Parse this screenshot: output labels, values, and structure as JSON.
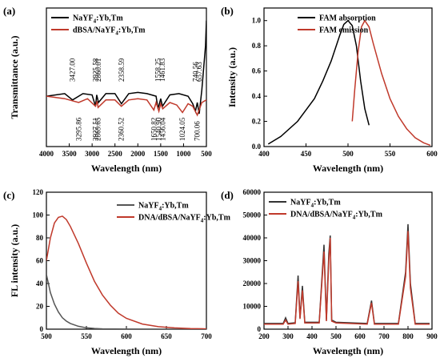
{
  "chart_data": [
    {
      "panel": "(a)",
      "type": "line",
      "xlabel": "Wavelength (nm)",
      "ylabel": "Transmittance (a.u.)",
      "xlim": [
        4000,
        500
      ],
      "x_ticks": [
        "4000",
        "3500",
        "3000",
        "2500",
        "2000",
        "1500",
        "1000",
        "500"
      ],
      "legend": "top-left",
      "series": [
        {
          "name": "NaYF4:Yb,Tm",
          "color": "#000000",
          "x": [
            4000,
            3600,
            3427,
            3200,
            3000,
            2925,
            2900,
            2860,
            2700,
            2500,
            2358,
            2200,
            2000,
            1800,
            1600,
            1558,
            1500,
            1461,
            1300,
            1100,
            900,
            800,
            740,
            700,
            657,
            600,
            520,
            500
          ],
          "y": [
            0.0,
            0.2,
            -0.3,
            0.2,
            0.1,
            -0.8,
            0.1,
            -0.5,
            0.2,
            0.2,
            -0.6,
            0.2,
            0.3,
            0.2,
            0.0,
            -1.0,
            -0.2,
            -0.8,
            0.1,
            0.2,
            0.0,
            -0.6,
            -1.2,
            -0.5,
            -1.4,
            0.5,
            4.0,
            6.0
          ]
        },
        {
          "name": "dBSA/NaYF4:Yb,Tm",
          "color": "#c0392b",
          "x": [
            4000,
            3600,
            3295,
            3100,
            2927,
            2890,
            2869,
            2700,
            2500,
            2360,
            2200,
            2000,
            1800,
            1650,
            1600,
            1540,
            1500,
            1456,
            1300,
            1150,
            1024,
            900,
            800,
            700,
            600,
            500
          ],
          "y": [
            0.0,
            -0.2,
            -0.5,
            -0.2,
            -0.8,
            -0.4,
            -0.9,
            -0.3,
            -0.3,
            -0.8,
            -0.3,
            -0.2,
            -0.3,
            -1.1,
            -0.5,
            -1.2,
            -0.6,
            -1.0,
            -0.5,
            -0.7,
            -1.3,
            -0.6,
            -0.8,
            -1.5,
            -0.5,
            -0.3
          ]
        }
      ],
      "annotations": [
        "3427.00",
        "2925.58",
        "2860.01",
        "2358.59",
        "1558.25",
        "1461.83",
        "740.56",
        "657.63",
        "3295.86",
        "2927.51",
        "2869.65",
        "2360.52",
        "1650.82",
        "1540.90",
        "1456.04",
        "1024.05",
        "700.06"
      ]
    },
    {
      "panel": "(b)",
      "type": "line",
      "xlabel": "Wavelength (nm)",
      "ylabel": "Intensity (a.u.)",
      "xlim": [
        400,
        600
      ],
      "ylim": [
        0.0,
        1.1
      ],
      "x_ticks": [
        "400",
        "450",
        "500",
        "550",
        "600"
      ],
      "y_ticks": [
        "0.0",
        "0.2",
        "0.4",
        "0.6",
        "0.8",
        "1.0"
      ],
      "legend": "top-center",
      "series": [
        {
          "name": "FAM absorption",
          "color": "#000000",
          "x": [
            405,
            420,
            440,
            460,
            470,
            480,
            490,
            495,
            500,
            505,
            510,
            515,
            520,
            525
          ],
          "y": [
            0.02,
            0.08,
            0.2,
            0.38,
            0.52,
            0.68,
            0.88,
            0.97,
            1.0,
            0.96,
            0.8,
            0.52,
            0.3,
            0.17
          ]
        },
        {
          "name": "FAM emission",
          "color": "#c0392b",
          "x": [
            505,
            508,
            512,
            516,
            520,
            525,
            530,
            540,
            550,
            560,
            570,
            580,
            590,
            598
          ],
          "y": [
            0.2,
            0.45,
            0.75,
            0.95,
            1.0,
            0.95,
            0.82,
            0.58,
            0.38,
            0.24,
            0.14,
            0.07,
            0.03,
            0.01
          ]
        }
      ]
    },
    {
      "panel": "(c)",
      "type": "line",
      "xlabel": "Wavelength (nm)",
      "ylabel": "FL intensity (a.u.)",
      "xlim": [
        500,
        700
      ],
      "ylim": [
        0,
        120
      ],
      "x_ticks": [
        "500",
        "550",
        "600",
        "650",
        "700"
      ],
      "y_ticks": [
        "0",
        "20",
        "40",
        "60",
        "80",
        "100",
        "120"
      ],
      "legend": "top-right",
      "series": [
        {
          "name": "NaYF4:Yb,Tm",
          "color": "#555555",
          "x": [
            500,
            505,
            510,
            515,
            520,
            525,
            530,
            540,
            550,
            560,
            570,
            600,
            650,
            700
          ],
          "y": [
            48,
            32,
            22,
            15,
            10,
            7,
            5,
            2.5,
            1.2,
            0.6,
            0.3,
            0.1,
            0.0,
            0.0
          ]
        },
        {
          "name": "DNA/dBSA/NaYF4:Yb,Tm",
          "color": "#c0392b",
          "x": [
            500,
            505,
            510,
            515,
            520,
            525,
            530,
            540,
            550,
            560,
            570,
            580,
            590,
            600,
            620,
            640,
            660,
            680,
            700
          ],
          "y": [
            60,
            80,
            93,
            98,
            99,
            96,
            90,
            75,
            58,
            42,
            30,
            21,
            14,
            9.5,
            4.5,
            2.2,
            1.1,
            0.5,
            0.3
          ]
        }
      ]
    },
    {
      "panel": "(d)",
      "type": "line",
      "xlabel": "Wavelength (nm)",
      "xlim": [
        200,
        900
      ],
      "ylim": [
        0,
        60000
      ],
      "x_ticks": [
        "200",
        "300",
        "400",
        "500",
        "600",
        "700",
        "800",
        "900"
      ],
      "y_ticks": [
        "0",
        "10000",
        "20000",
        "30000",
        "40000",
        "50000",
        "60000"
      ],
      "legend": "top-left",
      "series": [
        {
          "name": "NaYF4:Yb,Tm",
          "color": "#333333",
          "x": [
            200,
            280,
            290,
            300,
            330,
            342,
            350,
            360,
            370,
            430,
            450,
            460,
            470,
            476,
            482,
            500,
            630,
            648,
            660,
            760,
            790,
            800,
            810,
            830,
            890
          ],
          "y": [
            2500,
            2500,
            5000,
            2500,
            2800,
            23500,
            5000,
            19000,
            3000,
            3000,
            37000,
            4000,
            33000,
            41000,
            4000,
            3000,
            2500,
            12500,
            2500,
            2500,
            25000,
            46000,
            20000,
            2500,
            2500
          ]
        },
        {
          "name": "DNA/dBSA/NaYF4:Yb,Tm",
          "color": "#c0392b",
          "x": [
            200,
            280,
            290,
            300,
            330,
            342,
            350,
            360,
            370,
            430,
            450,
            460,
            470,
            476,
            482,
            500,
            630,
            648,
            660,
            760,
            790,
            800,
            810,
            830,
            890
          ],
          "y": [
            2200,
            2200,
            4000,
            2200,
            2500,
            21000,
            4500,
            17000,
            2700,
            2700,
            34000,
            3500,
            30000,
            40000,
            3500,
            2700,
            2200,
            11500,
            2200,
            2200,
            23000,
            43000,
            18000,
            2200,
            2200
          ]
        }
      ]
    }
  ]
}
